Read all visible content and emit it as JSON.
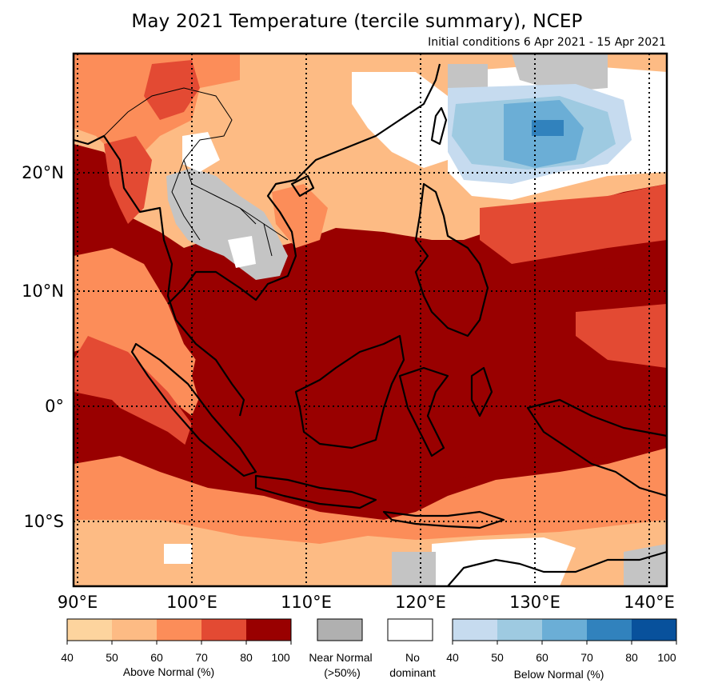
{
  "title": "May 2021 Temperature (tercile summary), NCEP",
  "subtitle": "Initial conditions 6 Apr 2021 - 15 Apr 2021",
  "map": {
    "region": "Southeast Asia / Maritime Continent",
    "lon_range": [
      90,
      142
    ],
    "lat_range": [
      -15.5,
      30
    ],
    "graticule": "dotted",
    "lon_labels": [
      {
        "value": 90,
        "text": "90°E"
      },
      {
        "value": 100,
        "text": "100°E"
      },
      {
        "value": 110,
        "text": "110°E"
      },
      {
        "value": 120,
        "text": "120°E"
      },
      {
        "value": 130,
        "text": "130°E"
      },
      {
        "value": 140,
        "text": "140°E"
      }
    ],
    "lat_labels": [
      {
        "value": 20,
        "text": "20°N"
      },
      {
        "value": 10,
        "text": "10°N"
      },
      {
        "value": 0,
        "text": "0°"
      },
      {
        "value": -10,
        "text": "10°S"
      }
    ]
  },
  "legend": {
    "above": {
      "label": "Above Normal (%)",
      "colors": [
        "#fdd49e",
        "#fdbb84",
        "#fc8d59",
        "#e34a33",
        "#990000"
      ],
      "ticks": [
        "40",
        "50",
        "60",
        "70",
        "80",
        "100"
      ]
    },
    "near": {
      "label_line1": "Near Normal",
      "label_line2": "(>50%)",
      "color": "#b0b0b0"
    },
    "none": {
      "label_line1": "No",
      "label_line2": "dominant",
      "color": "#ffffff"
    },
    "below": {
      "label": "Below Normal (%)",
      "colors": [
        "#c6dbef",
        "#9ecae1",
        "#6baed6",
        "#3182bd",
        "#08519c"
      ],
      "ticks": [
        "40",
        "50",
        "60",
        "70",
        "80",
        "100"
      ]
    }
  },
  "colors": {
    "map_above_80": "#990000",
    "map_above_70": "#e34a33",
    "map_above_60": "#fc8d59",
    "map_above_50": "#fdbb84",
    "map_above_40": "#fdd49e",
    "map_near": "#c4c4c4",
    "map_below_40": "#c6dbef",
    "map_below_50": "#9ecae1",
    "map_below_60": "#6baed6"
  }
}
